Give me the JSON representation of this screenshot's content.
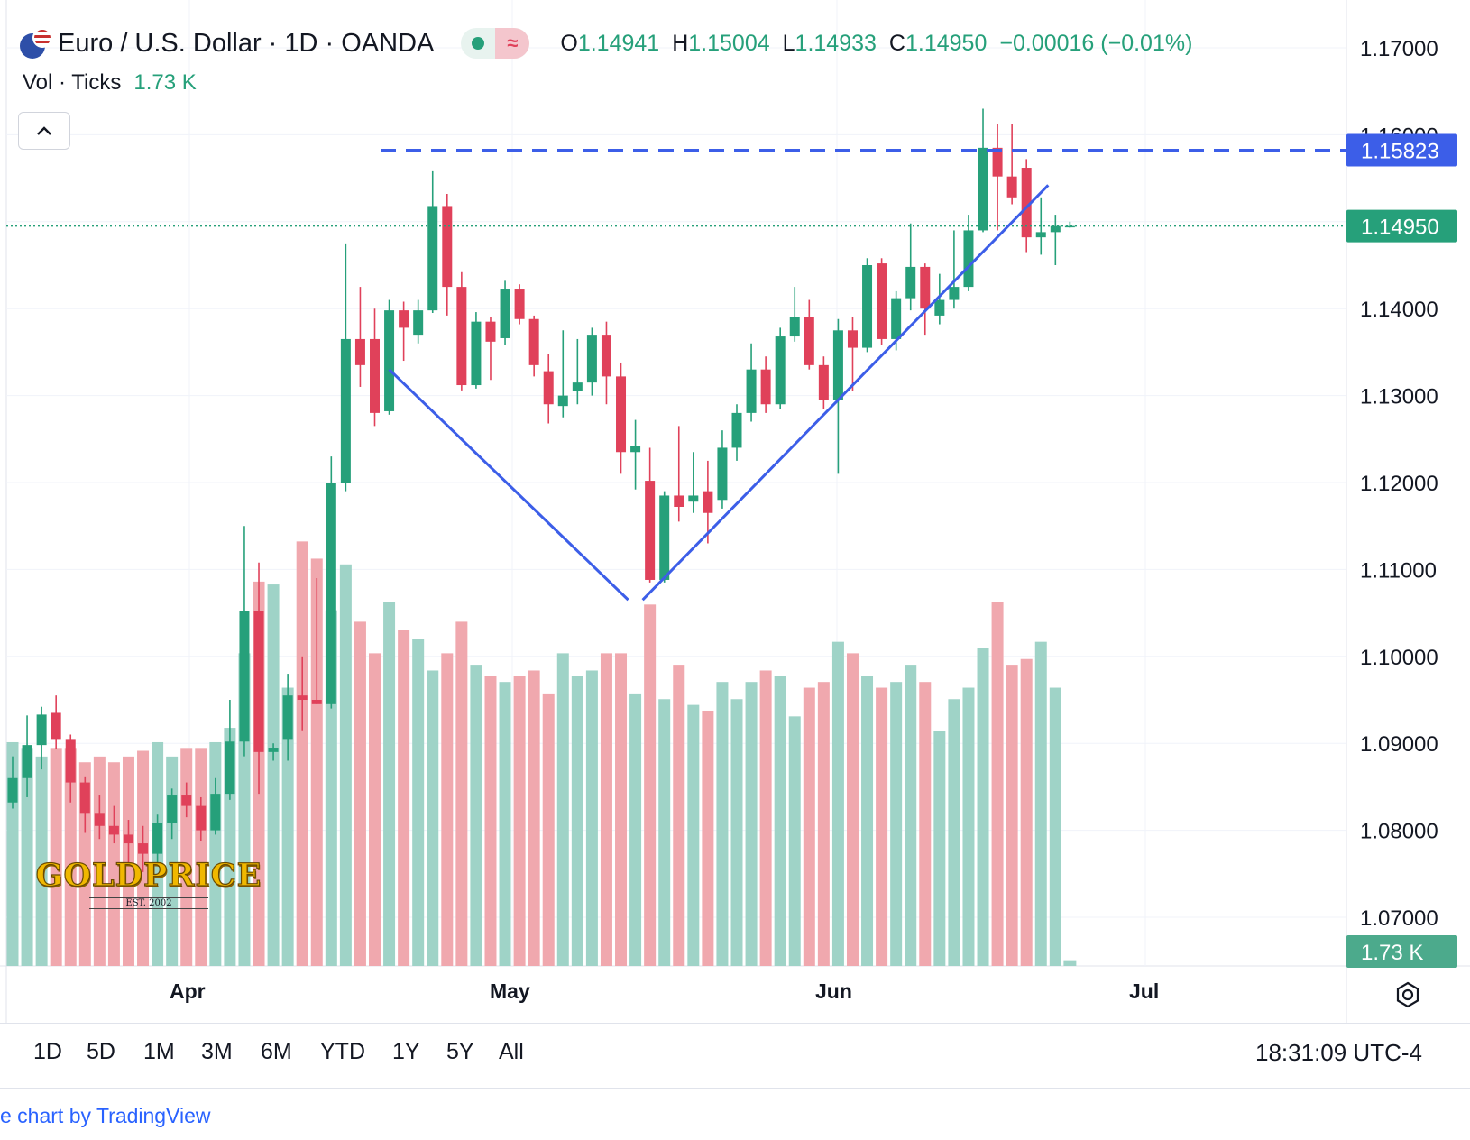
{
  "header": {
    "title": "Euro / U.S. Dollar · 1D · OANDA",
    "ohlc": {
      "o_label": "O",
      "o_value": "1.14941",
      "h_label": "H",
      "h_value": "1.15004",
      "l_label": "L",
      "l_value": "1.14933",
      "c_label": "C",
      "c_value": "1.14950",
      "change": "−0.00016 (−0.01%)"
    },
    "approx_icon": "≈",
    "status_dot": "live-dot-icon"
  },
  "volume_legend": {
    "label": "Vol · Ticks",
    "value": "1.73 K"
  },
  "collapse_icon": "chevron-up-icon",
  "logo": {
    "main": "GOLDPRICE",
    "est": "EST. 2002"
  },
  "price_axis": {
    "ticks": [
      "1.17000",
      "1.16000",
      "1.14000",
      "1.13000",
      "1.12000",
      "1.11000",
      "1.10000",
      "1.09000",
      "1.08000",
      "1.07000"
    ],
    "level_label": "1.15823",
    "last_price_label": "1.14950",
    "volume_label": "1.73 K"
  },
  "time_axis": {
    "labels": [
      "Apr",
      "May",
      "Jun",
      "Jul"
    ]
  },
  "timeframes": [
    "1D",
    "5D",
    "1M",
    "3M",
    "6M",
    "YTD",
    "1Y",
    "5Y",
    "All"
  ],
  "clock": "18:31:09 UTC-4",
  "credit": "e chart by TradingView",
  "colors": {
    "up": "#26a07a",
    "down": "#e0415a",
    "vol_up": "#9fd3c7",
    "vol_down": "#f0a8ae",
    "line": "#3c5ee8"
  },
  "chart_data": {
    "type": "candlestick",
    "y_scale": {
      "min": 1.065,
      "max": 1.17
    },
    "candles": [
      {
        "o": 1.0832,
        "h": 1.0885,
        "l": 1.0825,
        "c": 1.086,
        "v": 78
      },
      {
        "o": 1.086,
        "h": 1.0932,
        "l": 1.0838,
        "c": 1.0898,
        "v": 76
      },
      {
        "o": 1.0898,
        "h": 1.0942,
        "l": 1.087,
        "c": 1.0933,
        "v": 73
      },
      {
        "o": 1.0935,
        "h": 1.0955,
        "l": 1.0893,
        "c": 1.0905,
        "v": 76
      },
      {
        "o": 1.0905,
        "h": 1.091,
        "l": 1.0832,
        "c": 1.0855,
        "v": 76
      },
      {
        "o": 1.0855,
        "h": 1.0862,
        "l": 1.0797,
        "c": 1.082,
        "v": 71
      },
      {
        "o": 1.082,
        "h": 1.084,
        "l": 1.079,
        "c": 1.0805,
        "v": 73
      },
      {
        "o": 1.0805,
        "h": 1.0828,
        "l": 1.0785,
        "c": 1.0795,
        "v": 71
      },
      {
        "o": 1.0795,
        "h": 1.0812,
        "l": 1.076,
        "c": 1.0785,
        "v": 73
      },
      {
        "o": 1.0785,
        "h": 1.0805,
        "l": 1.0752,
        "c": 1.0773,
        "v": 75
      },
      {
        "o": 1.0773,
        "h": 1.0818,
        "l": 1.0762,
        "c": 1.0808,
        "v": 78
      },
      {
        "o": 1.0808,
        "h": 1.0848,
        "l": 1.079,
        "c": 1.084,
        "v": 73
      },
      {
        "o": 1.084,
        "h": 1.0855,
        "l": 1.0815,
        "c": 1.0828,
        "v": 76
      },
      {
        "o": 1.0828,
        "h": 1.0838,
        "l": 1.0788,
        "c": 1.08,
        "v": 76
      },
      {
        "o": 1.08,
        "h": 1.086,
        "l": 1.0795,
        "c": 1.0842,
        "v": 78
      },
      {
        "o": 1.0842,
        "h": 1.095,
        "l": 1.0835,
        "c": 1.0902,
        "v": 83
      },
      {
        "o": 1.0902,
        "h": 1.115,
        "l": 1.0885,
        "c": 1.1052,
        "v": 109
      },
      {
        "o": 1.1052,
        "h": 1.1108,
        "l": 1.0842,
        "c": 1.089,
        "v": 134
      },
      {
        "o": 1.089,
        "h": 1.09,
        "l": 1.088,
        "c": 1.0895,
        "v": 133
      },
      {
        "o": 1.0905,
        "h": 1.098,
        "l": 1.088,
        "c": 1.0955,
        "v": 97
      },
      {
        "o": 1.0955,
        "h": 1.1,
        "l": 1.0915,
        "c": 1.095,
        "v": 148
      },
      {
        "o": 1.095,
        "h": 1.109,
        "l": 1.0945,
        "c": 1.0945,
        "v": 142
      },
      {
        "o": 1.0945,
        "h": 1.123,
        "l": 1.094,
        "c": 1.12,
        "v": 124
      },
      {
        "o": 1.12,
        "h": 1.1475,
        "l": 1.119,
        "c": 1.1365,
        "v": 140
      },
      {
        "o": 1.1365,
        "h": 1.1425,
        "l": 1.131,
        "c": 1.1335,
        "v": 120
      },
      {
        "o": 1.1365,
        "h": 1.14,
        "l": 1.1265,
        "c": 1.128,
        "v": 109
      },
      {
        "o": 1.1282,
        "h": 1.141,
        "l": 1.1278,
        "c": 1.1398,
        "v": 127
      },
      {
        "o": 1.1398,
        "h": 1.1408,
        "l": 1.134,
        "c": 1.1378,
        "v": 117
      },
      {
        "o": 1.137,
        "h": 1.141,
        "l": 1.136,
        "c": 1.1398,
        "v": 114
      },
      {
        "o": 1.1398,
        "h": 1.1558,
        "l": 1.1395,
        "c": 1.1518,
        "v": 103
      },
      {
        "o": 1.1518,
        "h": 1.1532,
        "l": 1.1392,
        "c": 1.1425,
        "v": 109
      },
      {
        "o": 1.1425,
        "h": 1.1442,
        "l": 1.1306,
        "c": 1.1312,
        "v": 120
      },
      {
        "o": 1.1312,
        "h": 1.1396,
        "l": 1.1308,
        "c": 1.1385,
        "v": 105
      },
      {
        "o": 1.1385,
        "h": 1.139,
        "l": 1.1318,
        "c": 1.1362,
        "v": 101
      },
      {
        "o": 1.1366,
        "h": 1.1432,
        "l": 1.1358,
        "c": 1.1423,
        "v": 99
      },
      {
        "o": 1.1423,
        "h": 1.1428,
        "l": 1.1382,
        "c": 1.1388,
        "v": 101
      },
      {
        "o": 1.1388,
        "h": 1.1392,
        "l": 1.1322,
        "c": 1.1335,
        "v": 103
      },
      {
        "o": 1.1328,
        "h": 1.1348,
        "l": 1.1268,
        "c": 1.129,
        "v": 95
      },
      {
        "o": 1.1288,
        "h": 1.1375,
        "l": 1.1275,
        "c": 1.13,
        "v": 109
      },
      {
        "o": 1.1305,
        "h": 1.1365,
        "l": 1.129,
        "c": 1.1315,
        "v": 101
      },
      {
        "o": 1.1315,
        "h": 1.1378,
        "l": 1.13,
        "c": 1.137,
        "v": 103
      },
      {
        "o": 1.137,
        "h": 1.1385,
        "l": 1.129,
        "c": 1.1322,
        "v": 109
      },
      {
        "o": 1.1322,
        "h": 1.1338,
        "l": 1.121,
        "c": 1.1235,
        "v": 109
      },
      {
        "o": 1.1235,
        "h": 1.1272,
        "l": 1.1192,
        "c": 1.1242,
        "v": 95
      },
      {
        "o": 1.1202,
        "h": 1.124,
        "l": 1.1085,
        "c": 1.1088,
        "v": 126
      },
      {
        "o": 1.1088,
        "h": 1.119,
        "l": 1.1085,
        "c": 1.1185,
        "v": 93
      },
      {
        "o": 1.1185,
        "h": 1.1265,
        "l": 1.1155,
        "c": 1.1172,
        "v": 105
      },
      {
        "o": 1.1178,
        "h": 1.1235,
        "l": 1.1165,
        "c": 1.1185,
        "v": 91
      },
      {
        "o": 1.119,
        "h": 1.1225,
        "l": 1.113,
        "c": 1.1165,
        "v": 89
      },
      {
        "o": 1.118,
        "h": 1.126,
        "l": 1.117,
        "c": 1.124,
        "v": 99
      },
      {
        "o": 1.124,
        "h": 1.129,
        "l": 1.1225,
        "c": 1.128,
        "v": 93
      },
      {
        "o": 1.128,
        "h": 1.136,
        "l": 1.127,
        "c": 1.133,
        "v": 99
      },
      {
        "o": 1.133,
        "h": 1.1345,
        "l": 1.128,
        "c": 1.129,
        "v": 103
      },
      {
        "o": 1.129,
        "h": 1.1378,
        "l": 1.1285,
        "c": 1.1368,
        "v": 101
      },
      {
        "o": 1.1368,
        "h": 1.1425,
        "l": 1.1362,
        "c": 1.139,
        "v": 87
      },
      {
        "o": 1.139,
        "h": 1.141,
        "l": 1.133,
        "c": 1.1335,
        "v": 97
      },
      {
        "o": 1.1335,
        "h": 1.1345,
        "l": 1.1285,
        "c": 1.1295,
        "v": 99
      },
      {
        "o": 1.1295,
        "h": 1.1388,
        "l": 1.121,
        "c": 1.1375,
        "v": 113
      },
      {
        "o": 1.1375,
        "h": 1.139,
        "l": 1.1305,
        "c": 1.1355,
        "v": 109
      },
      {
        "o": 1.1355,
        "h": 1.1458,
        "l": 1.135,
        "c": 1.145,
        "v": 101
      },
      {
        "o": 1.1452,
        "h": 1.1458,
        "l": 1.1358,
        "c": 1.1365,
        "v": 97
      },
      {
        "o": 1.1365,
        "h": 1.142,
        "l": 1.1352,
        "c": 1.1412,
        "v": 99
      },
      {
        "o": 1.1412,
        "h": 1.1498,
        "l": 1.1398,
        "c": 1.1448,
        "v": 105
      },
      {
        "o": 1.1448,
        "h": 1.1452,
        "l": 1.137,
        "c": 1.14,
        "v": 99
      },
      {
        "o": 1.1392,
        "h": 1.144,
        "l": 1.1382,
        "c": 1.141,
        "v": 82
      },
      {
        "o": 1.141,
        "h": 1.149,
        "l": 1.14,
        "c": 1.1425,
        "v": 93
      },
      {
        "o": 1.1425,
        "h": 1.1508,
        "l": 1.142,
        "c": 1.149,
        "v": 97
      },
      {
        "o": 1.149,
        "h": 1.163,
        "l": 1.1488,
        "c": 1.1585,
        "v": 111
      },
      {
        "o": 1.1585,
        "h": 1.1612,
        "l": 1.149,
        "c": 1.1552,
        "v": 127
      },
      {
        "o": 1.1552,
        "h": 1.1612,
        "l": 1.152,
        "c": 1.1528,
        "v": 105
      },
      {
        "o": 1.1562,
        "h": 1.1572,
        "l": 1.1465,
        "c": 1.1482,
        "v": 107
      },
      {
        "o": 1.1482,
        "h": 1.1528,
        "l": 1.1462,
        "c": 1.1488,
        "v": 113
      },
      {
        "o": 1.1488,
        "h": 1.1508,
        "l": 1.145,
        "c": 1.1495,
        "v": 97
      },
      {
        "o": 1.1494,
        "h": 1.15,
        "l": 1.1493,
        "c": 1.1495,
        "v": 2
      }
    ],
    "horizontal_level": 1.15823,
    "last_price": 1.1495,
    "trendlines": [
      {
        "from": {
          "i": 26,
          "y": 1.133
        },
        "to": {
          "i": 42.5,
          "y": 1.1065
        }
      },
      {
        "from": {
          "i": 43.5,
          "y": 1.1065
        },
        "to": {
          "i": 71.5,
          "y": 1.1542
        }
      }
    ]
  }
}
